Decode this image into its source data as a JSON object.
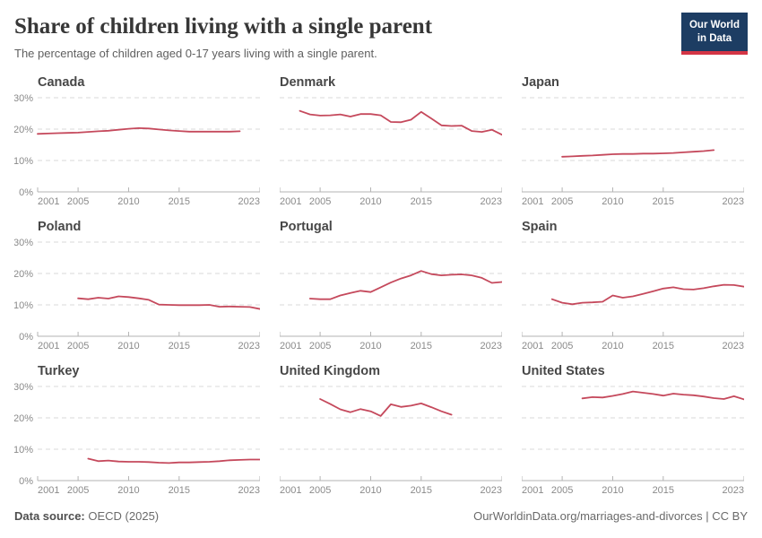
{
  "header": {
    "title": "Share of children living with a single parent",
    "subtitle": "The percentage of children aged 0-17 years living with a single parent.",
    "logo": {
      "line1": "Our World",
      "line2": "in Data",
      "bg_color": "#1d3d63",
      "accent_color": "#d43545"
    }
  },
  "chart_data": {
    "type": "line",
    "title": "Share of children living with a single parent",
    "subtitle": "The percentage of children aged 0-17 years living with a single parent.",
    "layout": "3x3 small multiples",
    "legend": "none",
    "grid": "horizontal dashed gridlines at 10/20/30%",
    "line_color": "#c5495c",
    "axis_color": "#b3b3b3",
    "gridline_color": "#dadada",
    "tick_label_color": "#8a8a8a",
    "x_range": [
      2001,
      2023
    ],
    "x_ticks": [
      2001,
      2005,
      2010,
      2015,
      2023
    ],
    "x_tick_labels": [
      "2001",
      "2005",
      "2010",
      "2015",
      "2023"
    ],
    "y_range": [
      0,
      30
    ],
    "y_ticks": [
      0,
      10,
      20,
      30
    ],
    "y_tick_labels": [
      "0%",
      "10%",
      "20%",
      "30%"
    ],
    "series": [
      {
        "name": "Canada",
        "points": [
          [
            2001,
            18.5
          ],
          [
            2002,
            18.6
          ],
          [
            2003,
            18.7
          ],
          [
            2004,
            18.8
          ],
          [
            2005,
            18.9
          ],
          [
            2006,
            19.1
          ],
          [
            2007,
            19.3
          ],
          [
            2008,
            19.5
          ],
          [
            2009,
            19.8
          ],
          [
            2010,
            20.1
          ],
          [
            2011,
            20.3
          ],
          [
            2012,
            20.2
          ],
          [
            2013,
            19.9
          ],
          [
            2014,
            19.6
          ],
          [
            2015,
            19.4
          ],
          [
            2016,
            19.2
          ],
          [
            2017,
            19.2
          ],
          [
            2018,
            19.2
          ],
          [
            2019,
            19.2
          ],
          [
            2020,
            19.2
          ],
          [
            2021,
            19.3
          ]
        ]
      },
      {
        "name": "Denmark",
        "points": [
          [
            2003,
            25.8
          ],
          [
            2004,
            24.7
          ],
          [
            2005,
            24.3
          ],
          [
            2006,
            24.4
          ],
          [
            2007,
            24.7
          ],
          [
            2008,
            24.0
          ],
          [
            2009,
            24.8
          ],
          [
            2010,
            24.8
          ],
          [
            2011,
            24.4
          ],
          [
            2012,
            22.3
          ],
          [
            2013,
            22.2
          ],
          [
            2014,
            23.0
          ],
          [
            2015,
            25.5
          ],
          [
            2016,
            23.4
          ],
          [
            2017,
            21.2
          ],
          [
            2018,
            21.0
          ],
          [
            2019,
            21.1
          ],
          [
            2020,
            19.4
          ],
          [
            2021,
            19.1
          ],
          [
            2022,
            19.8
          ],
          [
            2023,
            18.2
          ]
        ]
      },
      {
        "name": "Japan",
        "points": [
          [
            2005,
            11.2
          ],
          [
            2006,
            11.3
          ],
          [
            2007,
            11.5
          ],
          [
            2008,
            11.6
          ],
          [
            2009,
            11.8
          ],
          [
            2010,
            12.0
          ],
          [
            2011,
            12.1
          ],
          [
            2012,
            12.1
          ],
          [
            2013,
            12.2
          ],
          [
            2014,
            12.2
          ],
          [
            2015,
            12.3
          ],
          [
            2016,
            12.4
          ],
          [
            2017,
            12.6
          ],
          [
            2018,
            12.8
          ],
          [
            2019,
            13.0
          ],
          [
            2020,
            13.3
          ]
        ]
      },
      {
        "name": "Poland",
        "points": [
          [
            2005,
            12.1
          ],
          [
            2006,
            11.8
          ],
          [
            2007,
            12.3
          ],
          [
            2008,
            12.0
          ],
          [
            2009,
            12.7
          ],
          [
            2010,
            12.5
          ],
          [
            2011,
            12.1
          ],
          [
            2012,
            11.6
          ],
          [
            2013,
            10.1
          ],
          [
            2014,
            10.0
          ],
          [
            2015,
            9.9
          ],
          [
            2016,
            9.9
          ],
          [
            2017,
            9.9
          ],
          [
            2018,
            10.0
          ],
          [
            2019,
            9.4
          ],
          [
            2020,
            9.5
          ],
          [
            2021,
            9.4
          ],
          [
            2022,
            9.3
          ],
          [
            2023,
            8.7
          ]
        ]
      },
      {
        "name": "Portugal",
        "points": [
          [
            2004,
            12.0
          ],
          [
            2005,
            11.8
          ],
          [
            2006,
            11.8
          ],
          [
            2007,
            13.0
          ],
          [
            2008,
            13.8
          ],
          [
            2009,
            14.5
          ],
          [
            2010,
            14.1
          ],
          [
            2011,
            15.6
          ],
          [
            2012,
            17.1
          ],
          [
            2013,
            18.4
          ],
          [
            2014,
            19.4
          ],
          [
            2015,
            20.8
          ],
          [
            2016,
            19.8
          ],
          [
            2017,
            19.4
          ],
          [
            2018,
            19.6
          ],
          [
            2019,
            19.7
          ],
          [
            2020,
            19.4
          ],
          [
            2021,
            18.6
          ],
          [
            2022,
            17.0
          ],
          [
            2023,
            17.3
          ]
        ]
      },
      {
        "name": "Spain",
        "points": [
          [
            2004,
            11.8
          ],
          [
            2005,
            10.7
          ],
          [
            2006,
            10.2
          ],
          [
            2007,
            10.7
          ],
          [
            2008,
            10.8
          ],
          [
            2009,
            11.0
          ],
          [
            2010,
            13.0
          ],
          [
            2011,
            12.3
          ],
          [
            2012,
            12.7
          ],
          [
            2013,
            13.5
          ],
          [
            2014,
            14.3
          ],
          [
            2015,
            15.2
          ],
          [
            2016,
            15.6
          ],
          [
            2017,
            15.0
          ],
          [
            2018,
            14.9
          ],
          [
            2019,
            15.3
          ],
          [
            2020,
            15.9
          ],
          [
            2021,
            16.4
          ],
          [
            2022,
            16.3
          ],
          [
            2023,
            15.8
          ]
        ]
      },
      {
        "name": "Turkey",
        "points": [
          [
            2006,
            7.0
          ],
          [
            2007,
            6.2
          ],
          [
            2008,
            6.4
          ],
          [
            2009,
            6.1
          ],
          [
            2010,
            6.0
          ],
          [
            2011,
            6.0
          ],
          [
            2012,
            5.9
          ],
          [
            2013,
            5.7
          ],
          [
            2014,
            5.6
          ],
          [
            2015,
            5.8
          ],
          [
            2016,
            5.8
          ],
          [
            2017,
            5.9
          ],
          [
            2018,
            6.0
          ],
          [
            2019,
            6.2
          ],
          [
            2020,
            6.5
          ],
          [
            2021,
            6.6
          ],
          [
            2022,
            6.7
          ],
          [
            2023,
            6.7
          ]
        ]
      },
      {
        "name": "United Kingdom",
        "points": [
          [
            2005,
            26.0
          ],
          [
            2006,
            24.4
          ],
          [
            2007,
            22.7
          ],
          [
            2008,
            21.8
          ],
          [
            2009,
            22.8
          ],
          [
            2010,
            22.1
          ],
          [
            2011,
            20.6
          ],
          [
            2012,
            24.3
          ],
          [
            2013,
            23.5
          ],
          [
            2014,
            23.9
          ],
          [
            2015,
            24.6
          ],
          [
            2016,
            23.4
          ],
          [
            2017,
            22.1
          ],
          [
            2018,
            21.0
          ]
        ]
      },
      {
        "name": "United States",
        "points": [
          [
            2007,
            26.2
          ],
          [
            2008,
            26.6
          ],
          [
            2009,
            26.5
          ],
          [
            2010,
            27.0
          ],
          [
            2011,
            27.6
          ],
          [
            2012,
            28.4
          ],
          [
            2013,
            28.0
          ],
          [
            2014,
            27.6
          ],
          [
            2015,
            27.1
          ],
          [
            2016,
            27.7
          ],
          [
            2017,
            27.4
          ],
          [
            2018,
            27.2
          ],
          [
            2019,
            26.8
          ],
          [
            2020,
            26.3
          ],
          [
            2021,
            26.0
          ],
          [
            2022,
            26.9
          ],
          [
            2023,
            25.9
          ]
        ]
      }
    ]
  },
  "footer": {
    "source_label": "Data source:",
    "source_value": "OECD (2025)",
    "credit_url": "OurWorldinData.org/marriages-and-divorces",
    "separator": "|",
    "license": "CC BY"
  }
}
